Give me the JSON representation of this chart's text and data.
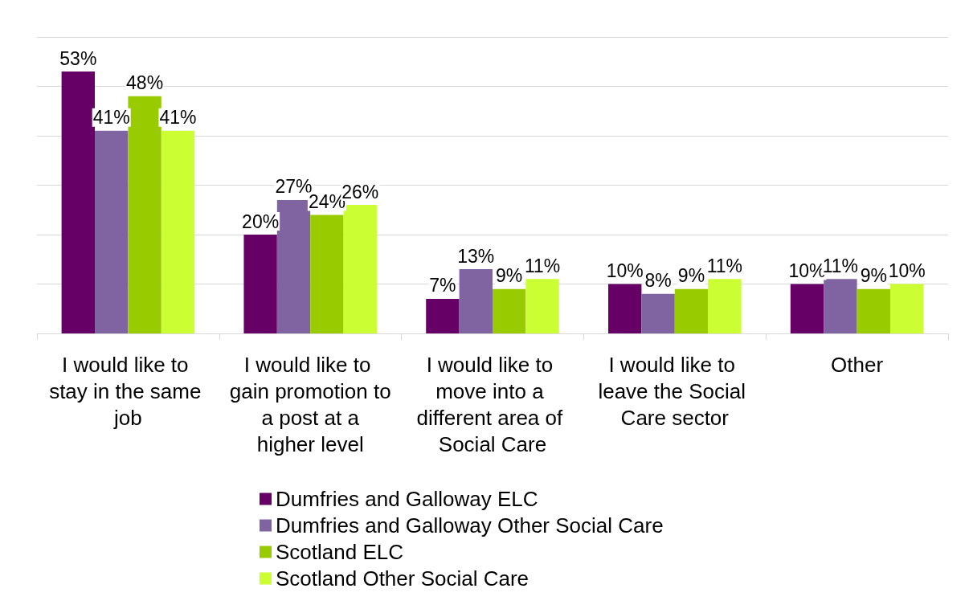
{
  "chart_data": {
    "type": "bar",
    "categories": [
      "I would like to stay in the same job",
      "I would like to gain promotion to a post at a higher level",
      "I would like to move into a different area of Social Care",
      "I would like to leave the Social Care sector",
      "Other"
    ],
    "series": [
      {
        "name": "Dumfries and Galloway ELC",
        "color": "#660066",
        "values": [
          53,
          20,
          7,
          10,
          10
        ],
        "value_labels": [
          "53%",
          "20%",
          "7%",
          "10%",
          "10%"
        ]
      },
      {
        "name": "Dumfries and Galloway Other Social Care",
        "color": "#8064a2",
        "values": [
          41,
          27,
          13,
          8,
          11
        ],
        "value_labels": [
          "41%",
          "27%",
          "13%",
          "8%",
          "11%"
        ]
      },
      {
        "name": "Scotland ELC",
        "color": "#99cc00",
        "values": [
          48,
          24,
          9,
          9,
          9
        ],
        "value_labels": [
          "48%",
          "24%",
          "9%",
          "9%",
          "9%"
        ]
      },
      {
        "name": "Scotland Other Social Care",
        "color": "#ccff33",
        "values": [
          41,
          26,
          11,
          11,
          10
        ],
        "value_labels": [
          "41%",
          "26%",
          "11%",
          "11%",
          "10%"
        ]
      }
    ],
    "grid": "y",
    "legend": "bottom",
    "tick_labels": "x"
  }
}
